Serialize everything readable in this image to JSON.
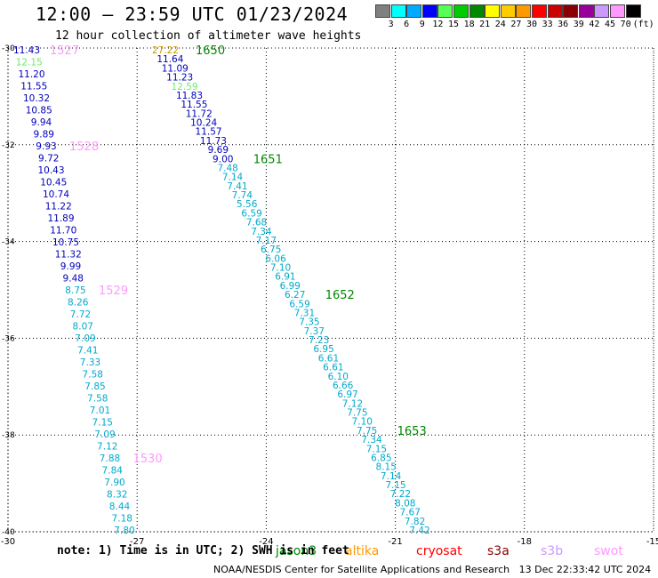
{
  "title": "12:00 – 23:59 UTC 01/23/2024",
  "subtitle": "12 hour collection of altimeter wave heights",
  "colorbar": {
    "colors": [
      "#808080",
      "#00ffff",
      "#00aaff",
      "#0000ff",
      "#55ff55",
      "#00cc00",
      "#008800",
      "#ffff00",
      "#ffcc00",
      "#ff9900",
      "#ff0000",
      "#cc0000",
      "#880000",
      "#990099",
      "#cc99ff",
      "#ff99ff",
      "#000000"
    ],
    "labels": [
      "3",
      "6",
      "9",
      "12",
      "15",
      "18",
      "21",
      "24",
      "27",
      "30",
      "33",
      "36",
      "39",
      "42",
      "45",
      "70"
    ],
    "unit": "(ft)"
  },
  "note": "note: 1) Time is in UTC; 2) SWH is in feet",
  "satellites": [
    {
      "name": "jason3",
      "color": "#008800"
    },
    {
      "name": "altika",
      "color": "#ff9900"
    },
    {
      "name": "cryosat",
      "color": "#ff0000"
    },
    {
      "name": "s3a",
      "color": "#880000"
    },
    {
      "name": "s3b",
      "color": "#cc99ff"
    },
    {
      "name": "swot",
      "color": "#ff99ff"
    }
  ],
  "footer": "NOAA/NESDIS Center for Satellite Applications and Research   13 Dec 22:33:42 UTC 2024",
  "map": {
    "lon_range": [
      -30,
      -15
    ],
    "lat_range": [
      -40,
      -30
    ],
    "lon_ticks": [
      "-30",
      "-27",
      "-24",
      "-21",
      "-18",
      "-15"
    ],
    "lat_ticks": [
      "-30",
      "-32",
      "-34",
      "-36",
      "-38",
      "-40"
    ]
  },
  "tracks": [
    {
      "values": [
        "11.43",
        "12.15",
        "11.20",
        "11.55",
        "10.32",
        "10.85",
        "9.94",
        "9.89",
        "9.93",
        "9.72",
        "10.43",
        "10.45",
        "10.74",
        "11.22",
        "11.89",
        "11.70",
        "10.75",
        "11.32",
        "9.99",
        "9.48",
        "8.75",
        "8.26",
        "7.72",
        "8.07",
        "7.09",
        "7.41",
        "7.33",
        "7.58",
        "7.85",
        "7.58",
        "7.01",
        "7.15",
        "7.09",
        "7.12",
        "7.88",
        "7.84",
        "7.90",
        "8.32",
        "8.44",
        "7.18",
        "7.80"
      ],
      "time_labels": [
        {
          "text": "1527",
          "index": 0
        },
        {
          "text": "1528",
          "index": 8
        },
        {
          "text": "1529",
          "index": 20
        },
        {
          "text": "1530",
          "index": 34
        }
      ],
      "time_color": "#ff99ff"
    },
    {
      "values": [
        "27.22",
        "11.64",
        "11.09",
        "11.23",
        "12.59",
        "11.83",
        "11.55",
        "11.72",
        "10.24",
        "11.57",
        "11.73",
        "9.69",
        "9.00",
        "7.48",
        "7.14",
        "7.41",
        "7.74",
        "5.56",
        "6.59",
        "7.68",
        "7.34",
        "7.17",
        "6.75",
        "6.06",
        "7.10",
        "6.91",
        "6.99",
        "6.27",
        "6.59",
        "7.31",
        "7.35",
        "7.37",
        "7.23",
        "6.95",
        "6.61",
        "6.61",
        "6.10",
        "6.66",
        "6.97",
        "7.12",
        "7.75",
        "7.10",
        "7.75",
        "7.34",
        "7.15",
        "6.85",
        "8.15",
        "7.14",
        "7.15",
        "7.22",
        "8.08",
        "7.67",
        "7.82",
        "7.42"
      ],
      "time_labels": [
        {
          "text": "1650",
          "index": 0
        },
        {
          "text": "1651",
          "index": 12
        },
        {
          "text": "1652",
          "index": 27
        },
        {
          "text": "1653",
          "index": 42
        }
      ],
      "time_color": "#008800"
    }
  ]
}
